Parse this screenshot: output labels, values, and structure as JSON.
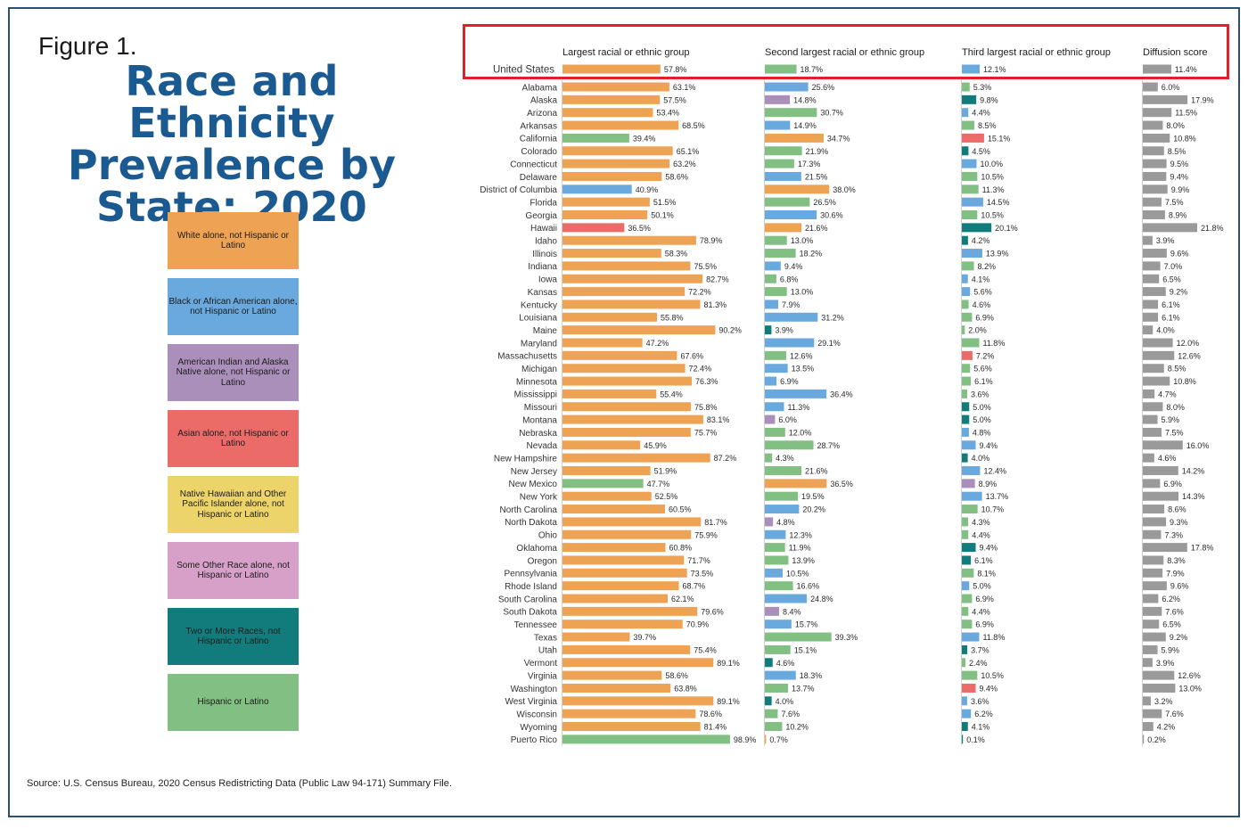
{
  "figure_label": "Figure 1.",
  "title": "Race and Ethnicity Prevalence by State: 2020",
  "source": "Source: U.S. Census Bureau, 2020 Census Redistricting Data (Public Law 94-171) Summary File.",
  "legend": [
    {
      "key": "W",
      "label": "White alone, not Hispanic or Latino",
      "color": "#eda254"
    },
    {
      "key": "B",
      "label": "Black or African American alone, not Hispanic or Latino",
      "color": "#6aa9dd"
    },
    {
      "key": "A",
      "label": "American Indian and Alaska Native alone, not Hispanic or Latino",
      "color": "#a98fba"
    },
    {
      "key": "S",
      "label": "Asian alone, not Hispanic or Latino",
      "color": "#ea6b67"
    },
    {
      "key": "N",
      "label": "Native Hawaiian and Other Pacific Islander alone, not Hispanic or Latino",
      "color": "#ecd46a"
    },
    {
      "key": "O",
      "label": "Some Other Race alone, not Hispanic or Latino",
      "color": "#d7a0c8"
    },
    {
      "key": "T",
      "label": "Two or More Races, not Hispanic or Latino",
      "color": "#127c7c"
    },
    {
      "key": "H",
      "label": "Hispanic or Latino",
      "color": "#81bf82"
    }
  ],
  "diffusion_color": "#9a9a9a",
  "highlight_color": "#e2202a",
  "chart_data": {
    "type": "bar",
    "title": "Race and Ethnicity Prevalence by State: 2020",
    "columns": [
      "Largest racial or ethnic group",
      "Second largest racial or ethnic group",
      "Third largest racial or ethnic group",
      "Diffusion score"
    ],
    "units": "percent",
    "rows": [
      {
        "name": "United States",
        "g1": [
          "W",
          57.8
        ],
        "g2": [
          "H",
          18.7
        ],
        "g3": [
          "B",
          12.1
        ],
        "d": 11.4
      },
      {
        "name": "Alabama",
        "g1": [
          "W",
          63.1
        ],
        "g2": [
          "B",
          25.6
        ],
        "g3": [
          "H",
          5.3
        ],
        "d": 6.0
      },
      {
        "name": "Alaska",
        "g1": [
          "W",
          57.5
        ],
        "g2": [
          "A",
          14.8
        ],
        "g3": [
          "T",
          9.8
        ],
        "d": 17.9
      },
      {
        "name": "Arizona",
        "g1": [
          "W",
          53.4
        ],
        "g2": [
          "H",
          30.7
        ],
        "g3": [
          "B",
          4.4
        ],
        "d": 11.5
      },
      {
        "name": "Arkansas",
        "g1": [
          "W",
          68.5
        ],
        "g2": [
          "B",
          14.9
        ],
        "g3": [
          "H",
          8.5
        ],
        "d": 8.0
      },
      {
        "name": "California",
        "g1": [
          "H",
          39.4
        ],
        "g2": [
          "W",
          34.7
        ],
        "g3": [
          "S",
          15.1
        ],
        "d": 10.8
      },
      {
        "name": "Colorado",
        "g1": [
          "W",
          65.1
        ],
        "g2": [
          "H",
          21.9
        ],
        "g3": [
          "T",
          4.5
        ],
        "d": 8.5
      },
      {
        "name": "Connecticut",
        "g1": [
          "W",
          63.2
        ],
        "g2": [
          "H",
          17.3
        ],
        "g3": [
          "B",
          10.0
        ],
        "d": 9.5
      },
      {
        "name": "Delaware",
        "g1": [
          "W",
          58.6
        ],
        "g2": [
          "B",
          21.5
        ],
        "g3": [
          "H",
          10.5
        ],
        "d": 9.4
      },
      {
        "name": "District of Columbia",
        "g1": [
          "B",
          40.9
        ],
        "g2": [
          "W",
          38.0
        ],
        "g3": [
          "H",
          11.3
        ],
        "d": 9.9
      },
      {
        "name": "Florida",
        "g1": [
          "W",
          51.5
        ],
        "g2": [
          "H",
          26.5
        ],
        "g3": [
          "B",
          14.5
        ],
        "d": 7.5
      },
      {
        "name": "Georgia",
        "g1": [
          "W",
          50.1
        ],
        "g2": [
          "B",
          30.6
        ],
        "g3": [
          "H",
          10.5
        ],
        "d": 8.9
      },
      {
        "name": "Hawaii",
        "g1": [
          "S",
          36.5
        ],
        "g2": [
          "W",
          21.6
        ],
        "g3": [
          "T",
          20.1
        ],
        "d": 21.8
      },
      {
        "name": "Idaho",
        "g1": [
          "W",
          78.9
        ],
        "g2": [
          "H",
          13.0
        ],
        "g3": [
          "T",
          4.2
        ],
        "d": 3.9
      },
      {
        "name": "Illinois",
        "g1": [
          "W",
          58.3
        ],
        "g2": [
          "H",
          18.2
        ],
        "g3": [
          "B",
          13.9
        ],
        "d": 9.6
      },
      {
        "name": "Indiana",
        "g1": [
          "W",
          75.5
        ],
        "g2": [
          "B",
          9.4
        ],
        "g3": [
          "H",
          8.2
        ],
        "d": 7.0
      },
      {
        "name": "Iowa",
        "g1": [
          "W",
          82.7
        ],
        "g2": [
          "H",
          6.8
        ],
        "g3": [
          "B",
          4.1
        ],
        "d": 6.5
      },
      {
        "name": "Kansas",
        "g1": [
          "W",
          72.2
        ],
        "g2": [
          "H",
          13.0
        ],
        "g3": [
          "B",
          5.6
        ],
        "d": 9.2
      },
      {
        "name": "Kentucky",
        "g1": [
          "W",
          81.3
        ],
        "g2": [
          "B",
          7.9
        ],
        "g3": [
          "H",
          4.6
        ],
        "d": 6.1
      },
      {
        "name": "Louisiana",
        "g1": [
          "W",
          55.8
        ],
        "g2": [
          "B",
          31.2
        ],
        "g3": [
          "H",
          6.9
        ],
        "d": 6.1
      },
      {
        "name": "Maine",
        "g1": [
          "W",
          90.2
        ],
        "g2": [
          "T",
          3.9
        ],
        "g3": [
          "H",
          2.0
        ],
        "d": 4.0
      },
      {
        "name": "Maryland",
        "g1": [
          "W",
          47.2
        ],
        "g2": [
          "B",
          29.1
        ],
        "g3": [
          "H",
          11.8
        ],
        "d": 12.0
      },
      {
        "name": "Massachusetts",
        "g1": [
          "W",
          67.6
        ],
        "g2": [
          "H",
          12.6
        ],
        "g3": [
          "S",
          7.2
        ],
        "d": 12.6
      },
      {
        "name": "Michigan",
        "g1": [
          "W",
          72.4
        ],
        "g2": [
          "B",
          13.5
        ],
        "g3": [
          "H",
          5.6
        ],
        "d": 8.5
      },
      {
        "name": "Minnesota",
        "g1": [
          "W",
          76.3
        ],
        "g2": [
          "B",
          6.9
        ],
        "g3": [
          "H",
          6.1
        ],
        "d": 10.8
      },
      {
        "name": "Mississippi",
        "g1": [
          "W",
          55.4
        ],
        "g2": [
          "B",
          36.4
        ],
        "g3": [
          "H",
          3.6
        ],
        "d": 4.7
      },
      {
        "name": "Missouri",
        "g1": [
          "W",
          75.8
        ],
        "g2": [
          "B",
          11.3
        ],
        "g3": [
          "T",
          5.0
        ],
        "d": 8.0
      },
      {
        "name": "Montana",
        "g1": [
          "W",
          83.1
        ],
        "g2": [
          "A",
          6.0
        ],
        "g3": [
          "T",
          5.0
        ],
        "d": 5.9
      },
      {
        "name": "Nebraska",
        "g1": [
          "W",
          75.7
        ],
        "g2": [
          "H",
          12.0
        ],
        "g3": [
          "B",
          4.8
        ],
        "d": 7.5
      },
      {
        "name": "Nevada",
        "g1": [
          "W",
          45.9
        ],
        "g2": [
          "H",
          28.7
        ],
        "g3": [
          "B",
          9.4
        ],
        "d": 16.0
      },
      {
        "name": "New Hampshire",
        "g1": [
          "W",
          87.2
        ],
        "g2": [
          "H",
          4.3
        ],
        "g3": [
          "T",
          4.0
        ],
        "d": 4.6
      },
      {
        "name": "New Jersey",
        "g1": [
          "W",
          51.9
        ],
        "g2": [
          "H",
          21.6
        ],
        "g3": [
          "B",
          12.4
        ],
        "d": 14.2
      },
      {
        "name": "New Mexico",
        "g1": [
          "H",
          47.7
        ],
        "g2": [
          "W",
          36.5
        ],
        "g3": [
          "A",
          8.9
        ],
        "d": 6.9
      },
      {
        "name": "New York",
        "g1": [
          "W",
          52.5
        ],
        "g2": [
          "H",
          19.5
        ],
        "g3": [
          "B",
          13.7
        ],
        "d": 14.3
      },
      {
        "name": "North Carolina",
        "g1": [
          "W",
          60.5
        ],
        "g2": [
          "B",
          20.2
        ],
        "g3": [
          "H",
          10.7
        ],
        "d": 8.6
      },
      {
        "name": "North Dakota",
        "g1": [
          "W",
          81.7
        ],
        "g2": [
          "A",
          4.8
        ],
        "g3": [
          "H",
          4.3
        ],
        "d": 9.3
      },
      {
        "name": "Ohio",
        "g1": [
          "W",
          75.9
        ],
        "g2": [
          "B",
          12.3
        ],
        "g3": [
          "H",
          4.4
        ],
        "d": 7.3
      },
      {
        "name": "Oklahoma",
        "g1": [
          "W",
          60.8
        ],
        "g2": [
          "H",
          11.9
        ],
        "g3": [
          "T",
          9.4
        ],
        "d": 17.8
      },
      {
        "name": "Oregon",
        "g1": [
          "W",
          71.7
        ],
        "g2": [
          "H",
          13.9
        ],
        "g3": [
          "T",
          6.1
        ],
        "d": 8.3
      },
      {
        "name": "Pennsylvania",
        "g1": [
          "W",
          73.5
        ],
        "g2": [
          "B",
          10.5
        ],
        "g3": [
          "H",
          8.1
        ],
        "d": 7.9
      },
      {
        "name": "Rhode Island",
        "g1": [
          "W",
          68.7
        ],
        "g2": [
          "H",
          16.6
        ],
        "g3": [
          "B",
          5.0
        ],
        "d": 9.6
      },
      {
        "name": "South Carolina",
        "g1": [
          "W",
          62.1
        ],
        "g2": [
          "B",
          24.8
        ],
        "g3": [
          "H",
          6.9
        ],
        "d": 6.2
      },
      {
        "name": "South Dakota",
        "g1": [
          "W",
          79.6
        ],
        "g2": [
          "A",
          8.4
        ],
        "g3": [
          "H",
          4.4
        ],
        "d": 7.6
      },
      {
        "name": "Tennessee",
        "g1": [
          "W",
          70.9
        ],
        "g2": [
          "B",
          15.7
        ],
        "g3": [
          "H",
          6.9
        ],
        "d": 6.5
      },
      {
        "name": "Texas",
        "g1": [
          "W",
          39.7
        ],
        "g2": [
          "H",
          39.3
        ],
        "g3": [
          "B",
          11.8
        ],
        "d": 9.2
      },
      {
        "name": "Utah",
        "g1": [
          "W",
          75.4
        ],
        "g2": [
          "H",
          15.1
        ],
        "g3": [
          "T",
          3.7
        ],
        "d": 5.9
      },
      {
        "name": "Vermont",
        "g1": [
          "W",
          89.1
        ],
        "g2": [
          "T",
          4.6
        ],
        "g3": [
          "H",
          2.4
        ],
        "d": 3.9
      },
      {
        "name": "Virginia",
        "g1": [
          "W",
          58.6
        ],
        "g2": [
          "B",
          18.3
        ],
        "g3": [
          "H",
          10.5
        ],
        "d": 12.6
      },
      {
        "name": "Washington",
        "g1": [
          "W",
          63.8
        ],
        "g2": [
          "H",
          13.7
        ],
        "g3": [
          "S",
          9.4
        ],
        "d": 13.0
      },
      {
        "name": "West Virginia",
        "g1": [
          "W",
          89.1
        ],
        "g2": [
          "T",
          4.0
        ],
        "g3": [
          "B",
          3.6
        ],
        "d": 3.2
      },
      {
        "name": "Wisconsin",
        "g1": [
          "W",
          78.6
        ],
        "g2": [
          "H",
          7.6
        ],
        "g3": [
          "B",
          6.2
        ],
        "d": 7.6
      },
      {
        "name": "Wyoming",
        "g1": [
          "W",
          81.4
        ],
        "g2": [
          "H",
          10.2
        ],
        "g3": [
          "T",
          4.1
        ],
        "d": 4.2
      },
      {
        "name": "Puerto Rico",
        "g1": [
          "H",
          98.9
        ],
        "g2": [
          "W",
          0.7
        ],
        "g3": [
          "T",
          0.1
        ],
        "d": 0.2
      }
    ]
  }
}
